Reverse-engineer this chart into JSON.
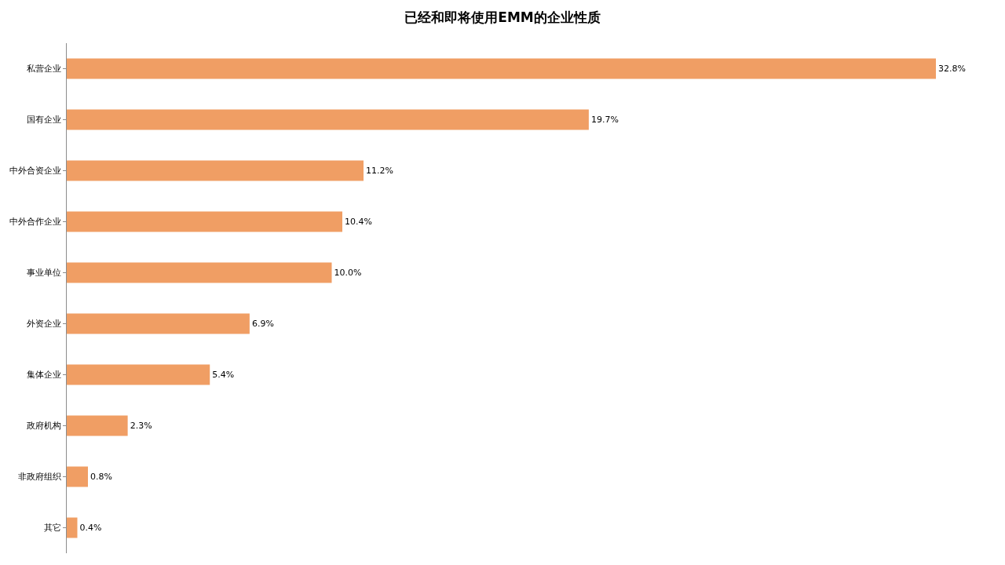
{
  "chart_data": {
    "type": "bar",
    "orientation": "horizontal",
    "title": "已经和即将使用EMM的企业性质",
    "categories": [
      "私营企业",
      "国有企业",
      "中外合资企业",
      "中外合作企业",
      "事业单位",
      "外资企业",
      "集体企业",
      "政府机构",
      "非政府组织",
      "其它"
    ],
    "values": [
      32.8,
      19.7,
      11.2,
      10.4,
      10.0,
      6.9,
      5.4,
      2.3,
      0.8,
      0.4
    ],
    "value_labels": [
      "32.8%",
      "19.7%",
      "11.2%",
      "10.4%",
      "10.0%",
      "6.9%",
      "5.4%",
      "2.3%",
      "0.8%",
      "0.4%"
    ],
    "color": "#f09e64",
    "tick_labels": "y"
  }
}
